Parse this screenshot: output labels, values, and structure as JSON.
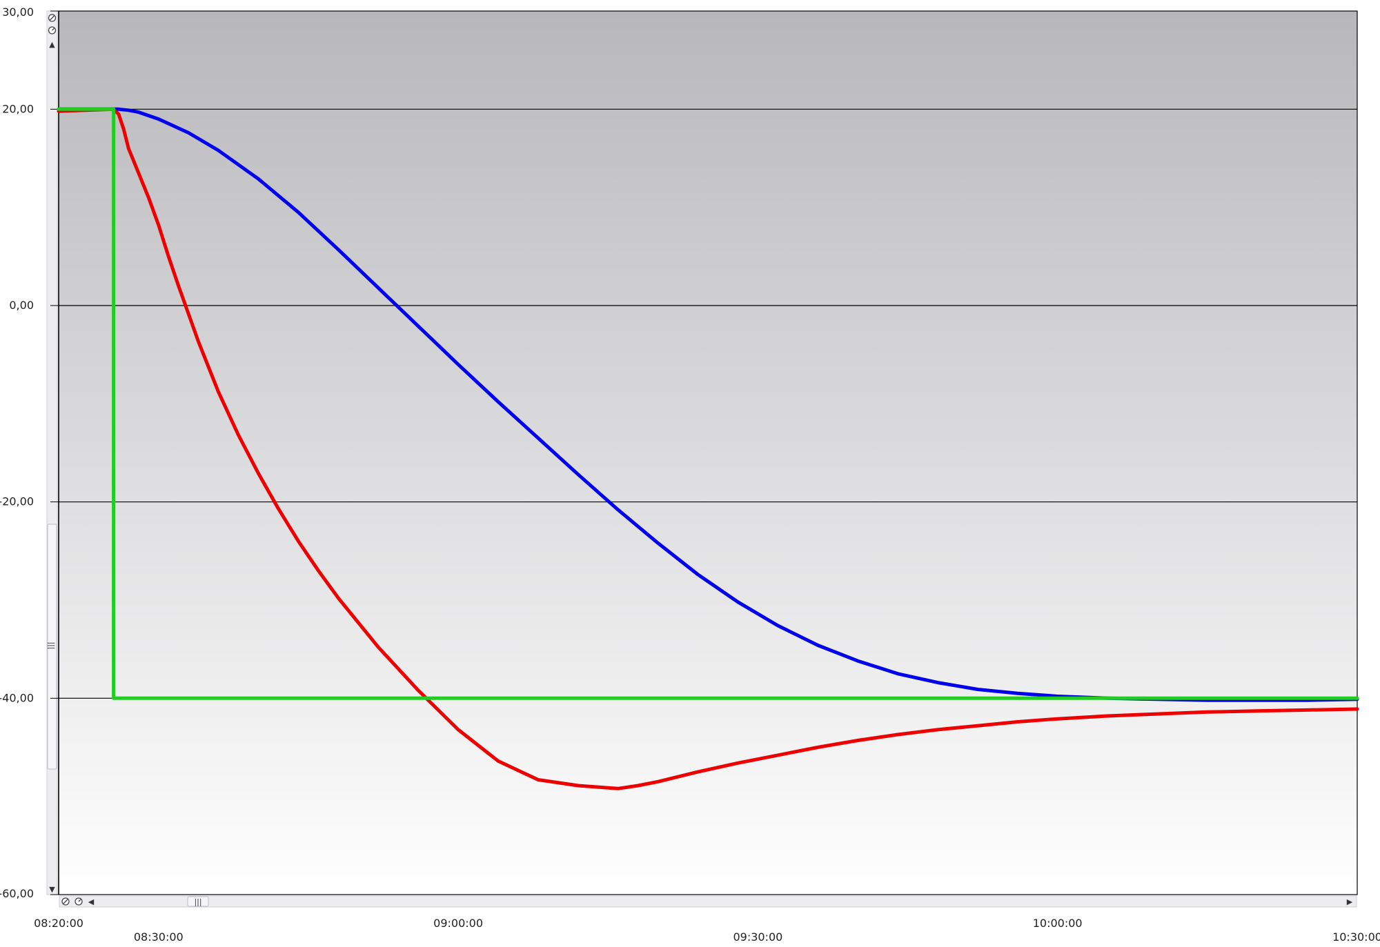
{
  "chart_data": {
    "type": "line",
    "title": "",
    "xlabel": "",
    "ylabel": "",
    "xlim": [
      "08:20:00",
      "10:30:00"
    ],
    "ylim": [
      -60,
      30
    ],
    "x_ticks": [
      "08:20:00",
      "08:30:00",
      "09:00:00",
      "09:30:00",
      "10:00:00",
      "10:30:00"
    ],
    "y_ticks": [
      "30,00",
      "20,00",
      "0,00",
      "-20,00",
      "-40,00",
      "-60,00"
    ],
    "y_tick_values": [
      30,
      20,
      0,
      -20,
      -40,
      -60
    ],
    "grid": "horizontal",
    "legend": "none",
    "background": "gradient gray-to-white",
    "series": [
      {
        "color": "#0000ee",
        "x": [
          "08:20:00",
          "08:24:00",
          "08:26:00",
          "08:27:00",
          "08:28:00",
          "08:30:00",
          "08:33:00",
          "08:36:00",
          "08:40:00",
          "08:44:00",
          "08:48:00",
          "08:52:00",
          "08:56:00",
          "09:00:00",
          "09:04:00",
          "09:08:00",
          "09:12:00",
          "09:16:00",
          "09:20:00",
          "09:24:00",
          "09:28:00",
          "09:32:00",
          "09:36:00",
          "09:40:00",
          "09:44:00",
          "09:48:00",
          "09:52:00",
          "09:56:00",
          "10:00:00",
          "10:05:00",
          "10:10:00",
          "10:15:00",
          "10:20:00",
          "10:25:00",
          "10:30:00"
        ],
        "values": [
          20,
          20,
          20,
          19.9,
          19.7,
          19,
          17.6,
          15.8,
          12.9,
          9.5,
          5.7,
          1.8,
          -2.1,
          -6,
          -9.8,
          -13.5,
          -17.2,
          -20.8,
          -24.2,
          -27.4,
          -30.2,
          -32.6,
          -34.6,
          -36.2,
          -37.5,
          -38.4,
          -39.1,
          -39.5,
          -39.8,
          -40,
          -40.1,
          -40.2,
          -40.2,
          -40.2,
          -40.1
        ]
      },
      {
        "color": "#ee0000",
        "x": [
          "08:20:00",
          "08:25:30",
          "08:26:00",
          "08:26:30",
          "08:27:00",
          "08:28:00",
          "08:29:00",
          "08:30:00",
          "08:31:00",
          "08:32:00",
          "08:34:00",
          "08:36:00",
          "08:38:00",
          "08:40:00",
          "08:42:00",
          "08:44:00",
          "08:46:00",
          "08:48:00",
          "08:52:00",
          "08:56:00",
          "09:00:00",
          "09:04:00",
          "09:08:00",
          "09:12:00",
          "09:16:00",
          "09:18:00",
          "09:20:00",
          "09:22:00",
          "09:24:00",
          "09:28:00",
          "09:32:00",
          "09:36:00",
          "09:40:00",
          "09:44:00",
          "09:48:00",
          "09:52:00",
          "09:56:00",
          "10:00:00",
          "10:05:00",
          "10:10:00",
          "10:15:00",
          "10:20:00",
          "10:25:00",
          "10:30:00"
        ],
        "values": [
          19.8,
          20,
          19.5,
          18,
          16,
          13.5,
          11,
          8.2,
          5,
          2,
          -3.7,
          -8.8,
          -13.2,
          -17.1,
          -20.7,
          -24,
          -27,
          -29.8,
          -34.8,
          -39.2,
          -43.2,
          -46.4,
          -48.3,
          -48.9,
          -49.2,
          -48.9,
          -48.5,
          -48,
          -47.5,
          -46.6,
          -45.8,
          -45,
          -44.3,
          -43.7,
          -43.2,
          -42.8,
          -42.4,
          -42.1,
          -41.8,
          -41.6,
          -41.4,
          -41.3,
          -41.2,
          -41.1
        ]
      },
      {
        "color": "#22cc22",
        "x": [
          "08:20:00",
          "08:25:30",
          "08:25:30",
          "10:30:00"
        ],
        "values": [
          20,
          20,
          -40,
          -40
        ]
      }
    ]
  },
  "controls": {
    "zoom_icon": "magnifier-icon",
    "reset_icon": "reset-icon",
    "scroll_up_glyph": "▲",
    "scroll_down_glyph": "▼",
    "scroll_left_glyph": "◀",
    "scroll_right_glyph": "▶",
    "grip_glyph": "|||"
  },
  "colors": {
    "plot_top": "#b8b7bb",
    "plot_bottom": "#ffffff",
    "gridline": "#000000",
    "scrollbar_track": "#e9e9ec",
    "scrollbar_thumb": "#f4f4f6"
  }
}
